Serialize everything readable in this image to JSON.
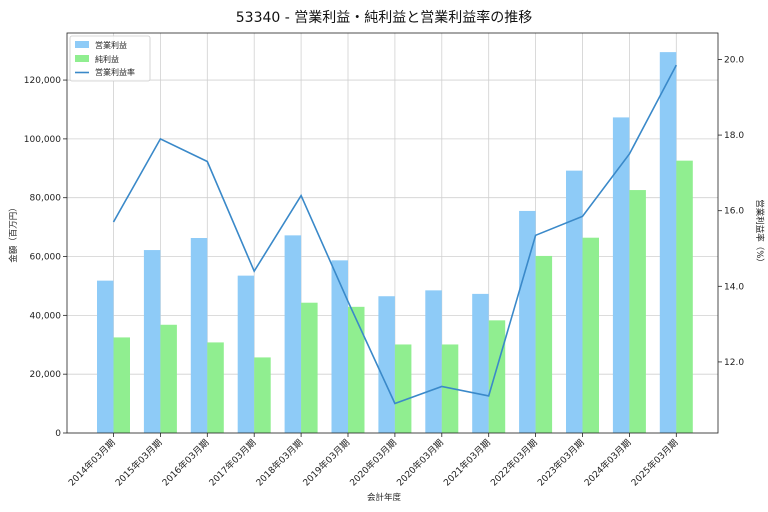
{
  "chart_data": {
    "type": "bar",
    "title": "53340 - 営業利益・純利益と営業利益率の推移",
    "xlabel": "会計年度",
    "ylabel": "金額（百万円）",
    "y2label": "営業利益率（%）",
    "categories": [
      "2014年03月期",
      "2015年03月期",
      "2016年03月期",
      "2017年03月期",
      "2018年03月期",
      "2019年03月期",
      "2020年03月期",
      "2020年03月期",
      "2021年03月期",
      "2022年03月期",
      "2023年03月期",
      "2024年03月期",
      "2025年03月期"
    ],
    "series": [
      {
        "name": "営業利益",
        "kind": "bar",
        "axis": "left",
        "color": "#8ecbf7",
        "values": [
          51800,
          62200,
          66300,
          53500,
          67200,
          58700,
          46500,
          48500,
          47300,
          75500,
          89200,
          107300,
          129500
        ]
      },
      {
        "name": "純利益",
        "kind": "bar",
        "axis": "left",
        "color": "#90ee90",
        "values": [
          32500,
          36800,
          30800,
          25700,
          44300,
          42900,
          30100,
          30100,
          38300,
          60200,
          66400,
          82600,
          92600
        ]
      },
      {
        "name": "営業利益率",
        "kind": "line",
        "axis": "right",
        "color": "#3a89c9",
        "values": [
          15.7,
          17.9,
          17.3,
          14.4,
          16.4,
          13.6,
          10.9,
          11.35,
          11.1,
          15.35,
          15.85,
          17.5,
          19.85
        ]
      }
    ],
    "ylim": [
      0,
      136000
    ],
    "y_ticks": [
      0,
      20000,
      40000,
      60000,
      80000,
      100000,
      120000
    ],
    "y_tick_labels": [
      "0",
      "20,000",
      "40,000",
      "60,000",
      "80,000",
      "100,000",
      "120,000"
    ],
    "y2lim": [
      10.12,
      20.7
    ],
    "y2_ticks": [
      12,
      14,
      16,
      18,
      20
    ],
    "y2_tick_labels": [
      "12.0",
      "14.0",
      "16.0",
      "18.0",
      "20.0"
    ],
    "grid": true,
    "legend_position": "top-left"
  }
}
